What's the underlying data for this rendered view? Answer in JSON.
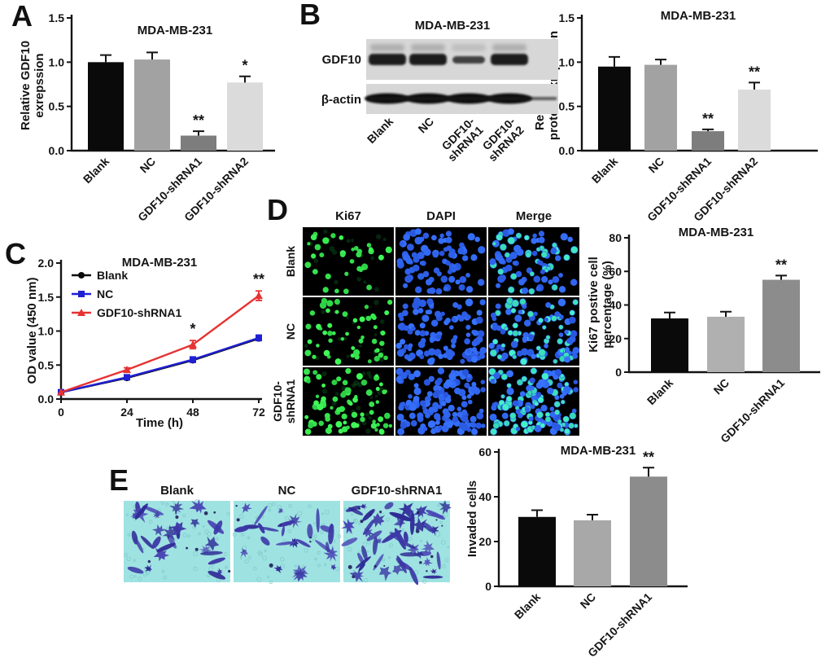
{
  "figure": {
    "background": "#ffffff",
    "panels": {
      "A": {
        "letter": "A"
      },
      "B": {
        "letter": "B",
        "blot": {
          "title": "MDA-MB-231",
          "targets": [
            "GDF10",
            "β-actin"
          ],
          "lanes": [
            [
              "Blank"
            ],
            [
              "NC"
            ],
            [
              "GDF10-",
              "shRNA1"
            ],
            [
              "GDF10-",
              "shRNA2"
            ]
          ],
          "band_relative_intensity": [
            1.0,
            1.0,
            0.35,
            0.9
          ]
        }
      },
      "C": {
        "letter": "C"
      },
      "D": {
        "letter": "D",
        "grid": {
          "col_headers": [
            "Ki67",
            "DAPI",
            "Merge"
          ],
          "row_labels": [
            [
              "Blank"
            ],
            [
              "NC"
            ],
            [
              "GDF10-",
              "shRNA1"
            ]
          ],
          "ki67_color": "#1ed24d",
          "dapi_color": "#2437e0",
          "merge_positive_color": "#35e2b5"
        }
      },
      "E": {
        "letter": "E",
        "images": {
          "labels": [
            "Blank",
            "NC",
            "GDF10-shRNA1"
          ],
          "background_color": "#9fe2e2",
          "cell_color": "#3c38a6"
        }
      }
    }
  },
  "chart_data": [
    {
      "panel": "A",
      "type": "bar",
      "title": "MDA-MB-231",
      "ylabel": "Relative GDF10 exrepssion",
      "ylabel_lines": [
        "Relative GDF10",
        "exrepssion"
      ],
      "ylim": [
        0,
        1.5
      ],
      "yticks": [
        0,
        0.5,
        1.0,
        1.5
      ],
      "categories": [
        "Blank",
        "NC",
        "GDF10-shRNA1",
        "GDF10-shRNA2"
      ],
      "values": [
        1.0,
        1.03,
        0.17,
        0.77
      ],
      "errors": [
        0.08,
        0.08,
        0.05,
        0.07
      ],
      "significance": [
        "",
        "",
        "**",
        "*"
      ],
      "bar_colors": [
        "#0a0a0a",
        "#a2a2a2",
        "#7d7d7d",
        "#dbdbdb"
      ]
    },
    {
      "panel": "B",
      "type": "bar",
      "title": "MDA-MB-231",
      "ylabel": "Relative GDF10 protein exrepssion",
      "ylabel_lines": [
        "Relative GDF10",
        "protein exrepssion"
      ],
      "ylim": [
        0,
        1.5
      ],
      "yticks": [
        0,
        0.5,
        1.0,
        1.5
      ],
      "categories": [
        "Blank",
        "NC",
        "GDF10-shRNA1",
        "GDF10-shRNA2"
      ],
      "values": [
        0.95,
        0.97,
        0.22,
        0.69
      ],
      "errors": [
        0.11,
        0.06,
        0.02,
        0.08
      ],
      "significance": [
        "",
        "",
        "**",
        "**"
      ],
      "bar_colors": [
        "#0a0a0a",
        "#a2a2a2",
        "#7d7d7d",
        "#dbdbdb"
      ]
    },
    {
      "panel": "C",
      "type": "line",
      "title": "MDA-MB-231",
      "xlabel": "Time (h)",
      "ylabel": "OD value (450 nm)",
      "ylabel_lines": [
        "OD value (450 nm)"
      ],
      "x": [
        0,
        24,
        48,
        72
      ],
      "ylim": [
        0,
        2.0
      ],
      "yticks": [
        0,
        0.5,
        1.0,
        1.5,
        2.0
      ],
      "legend_position": "top-left-inside",
      "series": [
        {
          "name": "Blank",
          "color": "#0a0a0a",
          "marker": "circle",
          "values": [
            0.1,
            0.31,
            0.57,
            0.89
          ],
          "errors": [
            0,
            0,
            0,
            0
          ]
        },
        {
          "name": "NC",
          "color": "#1f1fd4",
          "marker": "square",
          "values": [
            0.1,
            0.32,
            0.58,
            0.9
          ],
          "errors": [
            0,
            0.02,
            0.04,
            0.04
          ]
        },
        {
          "name": "GDF10-shRNA1",
          "color": "#e63232",
          "marker": "triangle",
          "values": [
            0.1,
            0.43,
            0.8,
            1.52
          ],
          "errors": [
            0,
            0.03,
            0.06,
            0.07
          ]
        }
      ],
      "annotations": [
        {
          "x": 48,
          "text": "*"
        },
        {
          "x": 72,
          "text": "**"
        }
      ]
    },
    {
      "panel": "D",
      "type": "bar",
      "title": "MDA-MB-231",
      "ylabel": "Ki67 postive cell percentage (%)",
      "ylabel_lines": [
        "Ki67 postive cell",
        "percentage (%)"
      ],
      "ylim": [
        0,
        80
      ],
      "yticks": [
        0,
        20,
        40,
        60,
        80
      ],
      "categories": [
        "Blank",
        "NC",
        "GDF10-shRNA1"
      ],
      "values": [
        32,
        33,
        55
      ],
      "errors": [
        3.5,
        3,
        2.5
      ],
      "significance": [
        "",
        "",
        "**"
      ],
      "bar_colors": [
        "#0a0a0a",
        "#b0b0b0",
        "#8c8c8c"
      ]
    },
    {
      "panel": "E",
      "type": "bar",
      "title": "MDA-MB-231",
      "ylabel": "Invaded cells",
      "ylabel_lines": [
        "Invaded cells"
      ],
      "ylim": [
        0,
        60
      ],
      "yticks": [
        0,
        20,
        40,
        60
      ],
      "categories": [
        "Blank",
        "NC",
        "GDF10-shRNA1"
      ],
      "values": [
        31,
        29.5,
        49
      ],
      "errors": [
        3,
        2.5,
        4
      ],
      "significance": [
        "",
        "",
        "**"
      ],
      "bar_colors": [
        "#0a0a0a",
        "#a8a8a8",
        "#8c8c8c"
      ]
    }
  ]
}
